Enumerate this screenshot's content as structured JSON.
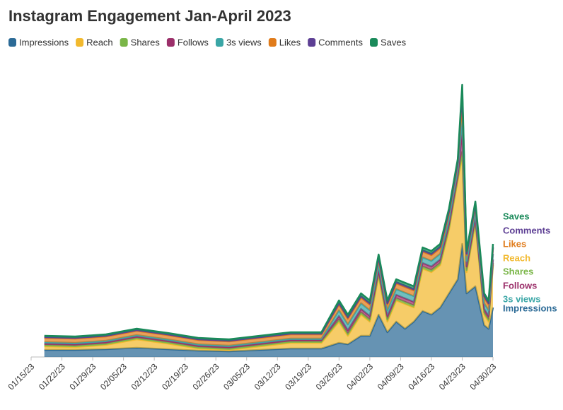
{
  "chart_data": {
    "type": "stacked-area",
    "title": "Instagram Engagement Jan-April 2023",
    "x": [
      "01/18/23",
      "01/25/23",
      "02/01/23",
      "02/08/23",
      "02/15/23",
      "02/22/23",
      "03/01/23",
      "03/08/23",
      "03/15/23",
      "03/22/23",
      "03/26/23",
      "03/28/23",
      "03/31/23",
      "04/02/23",
      "04/04/23",
      "04/06/23",
      "04/08/23",
      "04/10/23",
      "04/12/23",
      "04/14/23",
      "04/16/23",
      "04/18/23",
      "04/20/23",
      "04/22/23",
      "04/23/23",
      "04/24/23",
      "04/26/23",
      "04/28/23",
      "04/29/23",
      "04/30/23"
    ],
    "xticks": [
      "01/15/23",
      "01/22/23",
      "01/29/23",
      "02/05/23",
      "02/12/23",
      "02/19/23",
      "02/26/23",
      "03/05/23",
      "03/12/23",
      "03/19/23",
      "03/26/23",
      "04/02/23",
      "04/09/23",
      "04/16/23",
      "04/23/23",
      "04/30/23"
    ],
    "series": [
      {
        "name": "Impressions",
        "color": "#2b6a96",
        "values": [
          10,
          10,
          11,
          13,
          11,
          9,
          8,
          10,
          12,
          12,
          20,
          18,
          30,
          30,
          60,
          35,
          50,
          40,
          50,
          65,
          60,
          70,
          90,
          110,
          160,
          90,
          100,
          45,
          40,
          70
        ]
      },
      {
        "name": "Reach",
        "color": "#f2b92e",
        "values": [
          5,
          4,
          6,
          12,
          8,
          3,
          2,
          5,
          8,
          8,
          30,
          12,
          30,
          20,
          55,
          15,
          30,
          35,
          20,
          60,
          60,
          60,
          90,
          140,
          125,
          30,
          90,
          15,
          10,
          60
        ]
      },
      {
        "name": "Shares",
        "color": "#7ab648",
        "values": [
          2,
          2,
          2,
          2,
          2,
          2,
          2,
          2,
          2,
          2,
          3,
          3,
          3,
          3,
          3,
          3,
          3,
          3,
          3,
          3,
          3,
          3,
          3,
          3,
          5,
          3,
          3,
          3,
          3,
          3
        ]
      },
      {
        "name": "Follows",
        "color": "#9b2f6a",
        "values": [
          2,
          2,
          2,
          2,
          2,
          2,
          2,
          2,
          2,
          2,
          5,
          5,
          5,
          5,
          5,
          5,
          5,
          5,
          5,
          5,
          5,
          5,
          5,
          5,
          30,
          5,
          5,
          5,
          5,
          5
        ]
      },
      {
        "name": "3s views",
        "color": "#3aa6a6",
        "values": [
          2,
          2,
          2,
          2,
          2,
          2,
          2,
          2,
          2,
          2,
          8,
          8,
          8,
          8,
          8,
          8,
          8,
          8,
          8,
          8,
          8,
          8,
          8,
          8,
          20,
          8,
          8,
          8,
          8,
          8
        ]
      },
      {
        "name": "Likes",
        "color": "#e07b1a",
        "values": [
          6,
          6,
          6,
          6,
          6,
          6,
          6,
          6,
          6,
          6,
          8,
          8,
          8,
          8,
          8,
          8,
          8,
          8,
          8,
          8,
          8,
          8,
          8,
          8,
          25,
          8,
          8,
          8,
          8,
          8
        ]
      },
      {
        "name": "Comments",
        "color": "#5d3f94",
        "values": [
          1,
          1,
          1,
          1,
          1,
          1,
          1,
          1,
          1,
          1,
          2,
          2,
          2,
          2,
          2,
          2,
          2,
          2,
          2,
          2,
          2,
          2,
          2,
          2,
          10,
          2,
          2,
          2,
          2,
          2
        ]
      },
      {
        "name": "Saves",
        "color": "#1a8a5a",
        "values": [
          2,
          2,
          2,
          2,
          2,
          2,
          2,
          2,
          2,
          2,
          4,
          4,
          4,
          4,
          4,
          4,
          4,
          4,
          4,
          4,
          4,
          4,
          4,
          4,
          10,
          4,
          4,
          4,
          4,
          4
        ]
      }
    ]
  }
}
